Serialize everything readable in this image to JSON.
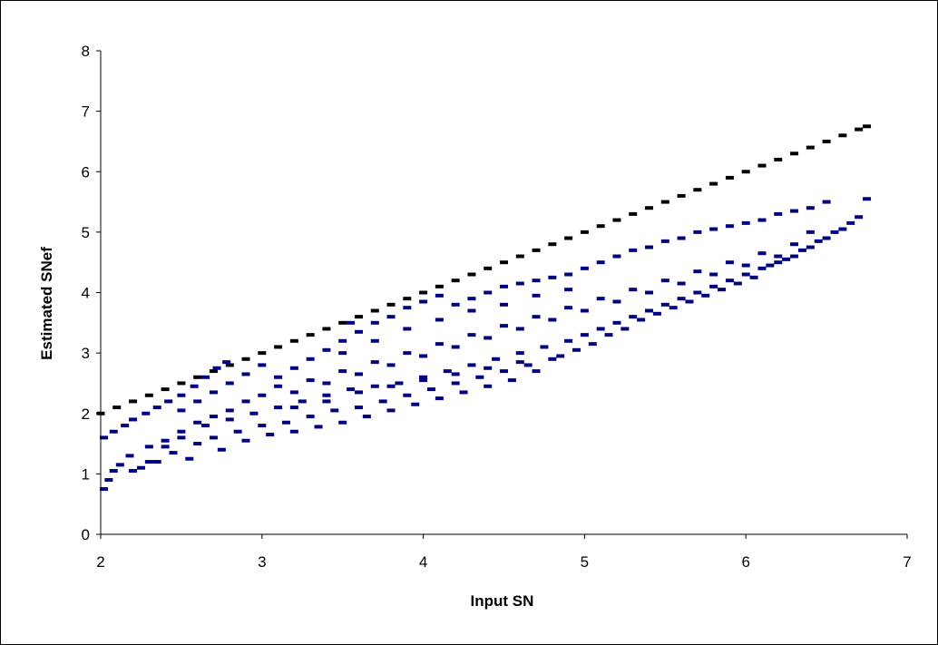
{
  "chart_data": {
    "type": "scatter",
    "title": "",
    "xlabel": "Input SN",
    "ylabel": "Estimated SNef",
    "xlim": [
      2,
      7
    ],
    "ylim": [
      0,
      8
    ],
    "x_ticks": [
      2,
      3,
      4,
      5,
      6,
      7
    ],
    "y_ticks": [
      0,
      1,
      2,
      3,
      4,
      5,
      6,
      7,
      8
    ],
    "grid": false,
    "legend": "none",
    "marker": "dash",
    "series": [
      {
        "color": "#000000",
        "points": [
          [
            2.0,
            2.0
          ],
          [
            2.1,
            2.1
          ],
          [
            2.2,
            2.2
          ],
          [
            2.3,
            2.3
          ],
          [
            2.4,
            2.4
          ],
          [
            2.5,
            2.5
          ],
          [
            2.6,
            2.6
          ],
          [
            2.7,
            2.7
          ],
          [
            2.8,
            2.8
          ],
          [
            2.9,
            2.9
          ],
          [
            3.0,
            3.0
          ],
          [
            3.1,
            3.1
          ],
          [
            3.2,
            3.2
          ],
          [
            3.3,
            3.3
          ],
          [
            3.4,
            3.4
          ],
          [
            3.5,
            3.5
          ],
          [
            3.6,
            3.6
          ],
          [
            3.7,
            3.7
          ],
          [
            3.8,
            3.8
          ],
          [
            3.9,
            3.9
          ],
          [
            4.0,
            4.0
          ],
          [
            4.1,
            4.1
          ],
          [
            4.2,
            4.2
          ],
          [
            4.3,
            4.3
          ],
          [
            4.4,
            4.4
          ],
          [
            4.5,
            4.5
          ],
          [
            4.6,
            4.6
          ],
          [
            4.7,
            4.7
          ],
          [
            4.8,
            4.8
          ],
          [
            4.9,
            4.9
          ],
          [
            5.0,
            5.0
          ],
          [
            5.1,
            5.1
          ],
          [
            5.2,
            5.2
          ],
          [
            5.3,
            5.3
          ],
          [
            5.4,
            5.4
          ],
          [
            5.5,
            5.5
          ],
          [
            5.6,
            5.6
          ],
          [
            5.7,
            5.7
          ],
          [
            5.8,
            5.8
          ],
          [
            5.9,
            5.9
          ],
          [
            6.0,
            6.0
          ],
          [
            6.1,
            6.1
          ],
          [
            6.2,
            6.2
          ],
          [
            6.3,
            6.3
          ],
          [
            6.4,
            6.4
          ],
          [
            6.5,
            6.5
          ],
          [
            6.6,
            6.6
          ],
          [
            6.7,
            6.7
          ],
          [
            6.75,
            6.75
          ]
        ]
      },
      {
        "color": "#000080",
        "points": [
          [
            2.02,
            0.75
          ],
          [
            2.05,
            0.9
          ],
          [
            2.08,
            1.05
          ],
          [
            2.12,
            1.15
          ],
          [
            2.18,
            1.3
          ],
          [
            2.25,
            1.1
          ],
          [
            2.3,
            1.45
          ],
          [
            2.35,
            1.2
          ],
          [
            2.4,
            1.55
          ],
          [
            2.45,
            1.35
          ],
          [
            2.5,
            1.7
          ],
          [
            2.55,
            1.25
          ],
          [
            2.6,
            1.5
          ],
          [
            2.65,
            1.8
          ],
          [
            2.7,
            1.6
          ],
          [
            2.75,
            1.4
          ],
          [
            2.8,
            1.9
          ],
          [
            2.85,
            1.7
          ],
          [
            2.9,
            1.55
          ],
          [
            2.95,
            2.0
          ],
          [
            3.0,
            1.8
          ],
          [
            3.05,
            1.65
          ],
          [
            3.1,
            2.1
          ],
          [
            3.15,
            1.85
          ],
          [
            3.2,
            1.7
          ],
          [
            3.25,
            2.2
          ],
          [
            3.3,
            1.95
          ],
          [
            3.35,
            1.78
          ],
          [
            3.4,
            2.3
          ],
          [
            3.45,
            2.05
          ],
          [
            3.5,
            1.85
          ],
          [
            3.55,
            2.4
          ],
          [
            3.6,
            2.1
          ],
          [
            3.65,
            1.95
          ],
          [
            3.7,
            2.45
          ],
          [
            3.75,
            2.2
          ],
          [
            3.8,
            2.05
          ],
          [
            3.85,
            2.5
          ],
          [
            3.9,
            2.3
          ],
          [
            3.95,
            2.15
          ],
          [
            4.0,
            2.6
          ],
          [
            4.05,
            2.4
          ],
          [
            4.1,
            2.25
          ],
          [
            4.15,
            2.7
          ],
          [
            4.2,
            2.5
          ],
          [
            4.25,
            2.35
          ],
          [
            4.3,
            2.8
          ],
          [
            4.35,
            2.6
          ],
          [
            4.4,
            2.45
          ],
          [
            4.45,
            2.9
          ],
          [
            4.5,
            2.7
          ],
          [
            4.55,
            2.55
          ],
          [
            4.6,
            3.0
          ],
          [
            4.65,
            2.8
          ],
          [
            4.7,
            2.7
          ],
          [
            4.75,
            3.1
          ],
          [
            4.8,
            2.9
          ],
          [
            4.85,
            2.95
          ],
          [
            4.9,
            3.2
          ],
          [
            4.95,
            3.05
          ],
          [
            5.0,
            3.3
          ],
          [
            5.05,
            3.15
          ],
          [
            5.1,
            3.4
          ],
          [
            5.15,
            3.3
          ],
          [
            5.2,
            3.5
          ],
          [
            5.25,
            3.4
          ],
          [
            5.3,
            3.6
          ],
          [
            5.35,
            3.55
          ],
          [
            5.4,
            3.7
          ],
          [
            5.45,
            3.65
          ],
          [
            5.5,
            3.8
          ],
          [
            5.55,
            3.75
          ],
          [
            5.6,
            3.9
          ],
          [
            5.65,
            3.85
          ],
          [
            5.7,
            4.0
          ],
          [
            5.75,
            3.95
          ],
          [
            5.8,
            4.1
          ],
          [
            5.85,
            4.05
          ],
          [
            5.9,
            4.2
          ],
          [
            5.95,
            4.15
          ],
          [
            6.0,
            4.3
          ],
          [
            6.05,
            4.25
          ],
          [
            6.1,
            4.4
          ],
          [
            6.15,
            4.45
          ],
          [
            6.2,
            4.5
          ],
          [
            6.25,
            4.55
          ],
          [
            6.3,
            4.6
          ],
          [
            6.35,
            4.7
          ],
          [
            6.4,
            4.75
          ],
          [
            6.45,
            4.85
          ],
          [
            6.5,
            4.9
          ],
          [
            6.55,
            5.0
          ],
          [
            6.6,
            5.05
          ],
          [
            6.65,
            5.15
          ],
          [
            6.7,
            5.25
          ],
          [
            6.75,
            5.55
          ],
          [
            2.02,
            1.6
          ],
          [
            2.08,
            1.7
          ],
          [
            2.15,
            1.8
          ],
          [
            2.2,
            1.9
          ],
          [
            2.28,
            2.0
          ],
          [
            2.35,
            2.1
          ],
          [
            2.42,
            2.2
          ],
          [
            2.5,
            2.3
          ],
          [
            2.58,
            2.45
          ],
          [
            2.65,
            2.6
          ],
          [
            2.72,
            2.75
          ],
          [
            2.78,
            2.85
          ],
          [
            2.5,
            2.05
          ],
          [
            2.6,
            2.2
          ],
          [
            2.7,
            2.35
          ],
          [
            2.8,
            2.5
          ],
          [
            2.9,
            2.65
          ],
          [
            3.0,
            2.8
          ],
          [
            3.1,
            2.6
          ],
          [
            3.2,
            2.75
          ],
          [
            3.3,
            2.9
          ],
          [
            3.4,
            3.05
          ],
          [
            3.5,
            3.2
          ],
          [
            3.55,
            3.5
          ],
          [
            3.6,
            3.35
          ],
          [
            3.7,
            3.5
          ],
          [
            3.8,
            3.6
          ],
          [
            3.9,
            3.75
          ],
          [
            4.0,
            3.85
          ],
          [
            4.1,
            3.95
          ],
          [
            4.2,
            3.8
          ],
          [
            4.3,
            3.9
          ],
          [
            4.4,
            4.0
          ],
          [
            4.5,
            4.1
          ],
          [
            4.6,
            4.15
          ],
          [
            4.7,
            4.2
          ],
          [
            4.8,
            4.25
          ],
          [
            4.9,
            4.3
          ],
          [
            5.0,
            4.4
          ],
          [
            5.1,
            4.5
          ],
          [
            5.2,
            4.6
          ],
          [
            5.3,
            4.7
          ],
          [
            5.4,
            4.75
          ],
          [
            5.5,
            4.85
          ],
          [
            5.6,
            4.9
          ],
          [
            5.7,
            5.0
          ],
          [
            5.8,
            5.05
          ],
          [
            5.9,
            5.1
          ],
          [
            6.0,
            5.15
          ],
          [
            6.1,
            5.2
          ],
          [
            6.2,
            5.3
          ],
          [
            6.3,
            5.35
          ],
          [
            6.4,
            5.4
          ],
          [
            6.5,
            5.5
          ],
          [
            3.0,
            2.3
          ],
          [
            3.1,
            2.45
          ],
          [
            3.2,
            2.35
          ],
          [
            3.3,
            2.55
          ],
          [
            3.4,
            2.5
          ],
          [
            3.5,
            2.7
          ],
          [
            3.6,
            2.65
          ],
          [
            3.7,
            2.85
          ],
          [
            3.8,
            2.8
          ],
          [
            3.9,
            3.0
          ],
          [
            4.0,
            2.95
          ],
          [
            4.1,
            3.15
          ],
          [
            4.2,
            3.1
          ],
          [
            4.3,
            3.3
          ],
          [
            4.4,
            3.25
          ],
          [
            4.5,
            3.45
          ],
          [
            4.6,
            3.4
          ],
          [
            4.7,
            3.6
          ],
          [
            4.8,
            3.55
          ],
          [
            4.9,
            3.75
          ],
          [
            5.0,
            3.7
          ],
          [
            5.1,
            3.9
          ],
          [
            5.2,
            3.85
          ],
          [
            5.3,
            4.05
          ],
          [
            5.4,
            4.0
          ],
          [
            5.5,
            4.2
          ],
          [
            5.6,
            4.15
          ],
          [
            5.7,
            4.35
          ],
          [
            5.8,
            4.3
          ],
          [
            5.9,
            4.5
          ],
          [
            6.0,
            4.45
          ],
          [
            6.1,
            4.65
          ],
          [
            6.2,
            4.6
          ],
          [
            6.3,
            4.8
          ],
          [
            6.4,
            5.0
          ],
          [
            3.5,
            3.0
          ],
          [
            3.7,
            3.2
          ],
          [
            3.9,
            3.4
          ],
          [
            4.1,
            3.55
          ],
          [
            4.3,
            3.7
          ],
          [
            4.5,
            3.8
          ],
          [
            4.7,
            3.95
          ],
          [
            4.9,
            4.05
          ],
          [
            3.2,
            2.1
          ],
          [
            3.4,
            2.2
          ],
          [
            3.6,
            2.35
          ],
          [
            3.8,
            2.45
          ],
          [
            4.0,
            2.55
          ],
          [
            4.2,
            2.65
          ],
          [
            4.4,
            2.75
          ],
          [
            4.6,
            2.85
          ],
          [
            2.2,
            1.05
          ],
          [
            2.3,
            1.2
          ],
          [
            2.4,
            1.45
          ],
          [
            2.5,
            1.6
          ],
          [
            2.6,
            1.85
          ],
          [
            2.7,
            1.95
          ],
          [
            2.8,
            2.05
          ],
          [
            2.9,
            2.2
          ]
        ]
      }
    ]
  }
}
